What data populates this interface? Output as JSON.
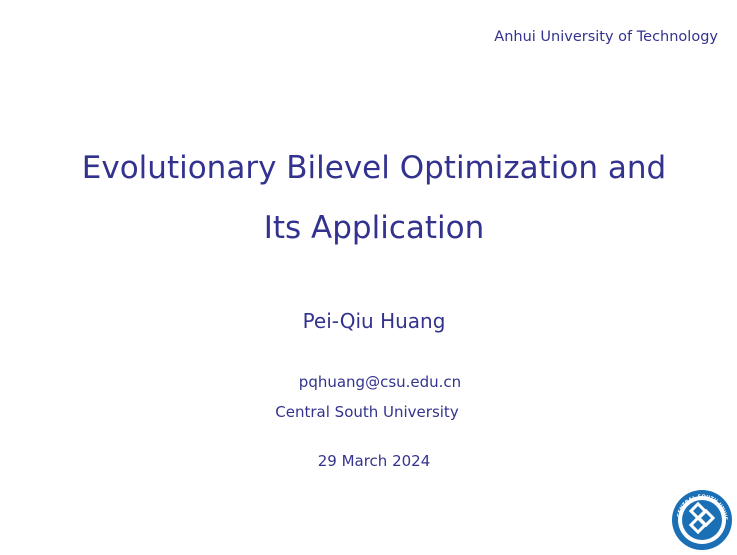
{
  "slide": {
    "institution": "Anhui University of Technology",
    "title_line1": "Evolutionary Bilevel Optimization and",
    "title_line2": "Its Application",
    "author": "Pei-Qiu Huang",
    "email": "pqhuang@csu.edu.cn",
    "affiliation": "Central South University",
    "date": "29 March 2024",
    "logo": {
      "icon": "central-south-university-logo",
      "text": "CENTRAL SOUTH UNIVERSITY",
      "color": "#1a6fb5"
    },
    "text_color": "#33338f"
  }
}
